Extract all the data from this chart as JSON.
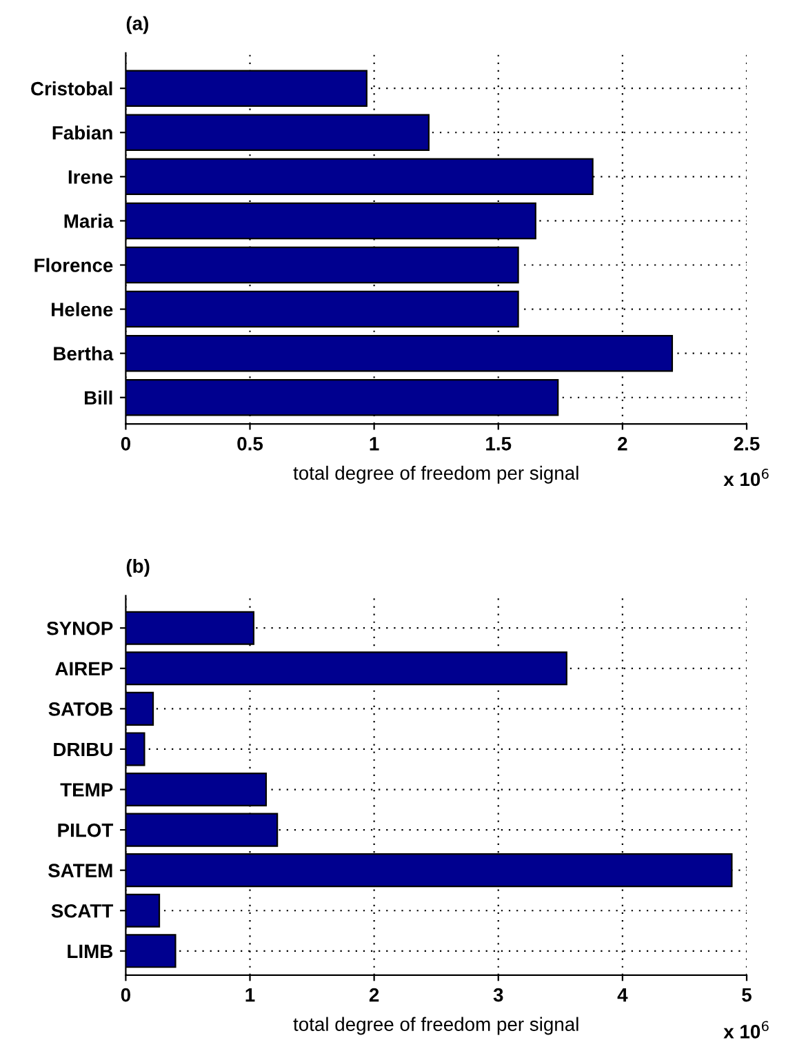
{
  "chart_data": [
    {
      "type": "bar",
      "orientation": "horizontal",
      "title": "(a)",
      "xlabel": "total degree of freedom per signal",
      "categories": [
        "Cristobal",
        "Fabian",
        "Irene",
        "Maria",
        "Florence",
        "Helene",
        "Bertha",
        "Bill"
      ],
      "values": [
        0.97,
        1.22,
        1.88,
        1.65,
        1.58,
        1.58,
        2.2,
        1.74
      ],
      "color": "#00008f",
      "xlim": [
        0,
        2.5
      ],
      "xticks": [
        0,
        0.5,
        1,
        1.5,
        2,
        2.5
      ],
      "grid": true,
      "annotations": [
        "x 10$^{6}$"
      ]
    },
    {
      "type": "bar",
      "orientation": "horizontal",
      "title": "(b)",
      "xlabel": "total degree of freedom per signal",
      "categories": [
        "SYNOP",
        "AIREP",
        "SATOB",
        "DRIBU",
        "TEMP",
        "PILOT",
        "SATEM",
        "SCATT",
        "LIMB"
      ],
      "values": [
        1.03,
        3.55,
        0.22,
        0.15,
        1.13,
        1.22,
        4.88,
        0.27,
        0.4
      ],
      "color": "#00008f",
      "xlim": [
        0,
        5
      ],
      "xticks": [
        0,
        1,
        2,
        3,
        4,
        5
      ],
      "grid": true,
      "annotations": [
        "x 10$^{6}$"
      ]
    }
  ]
}
